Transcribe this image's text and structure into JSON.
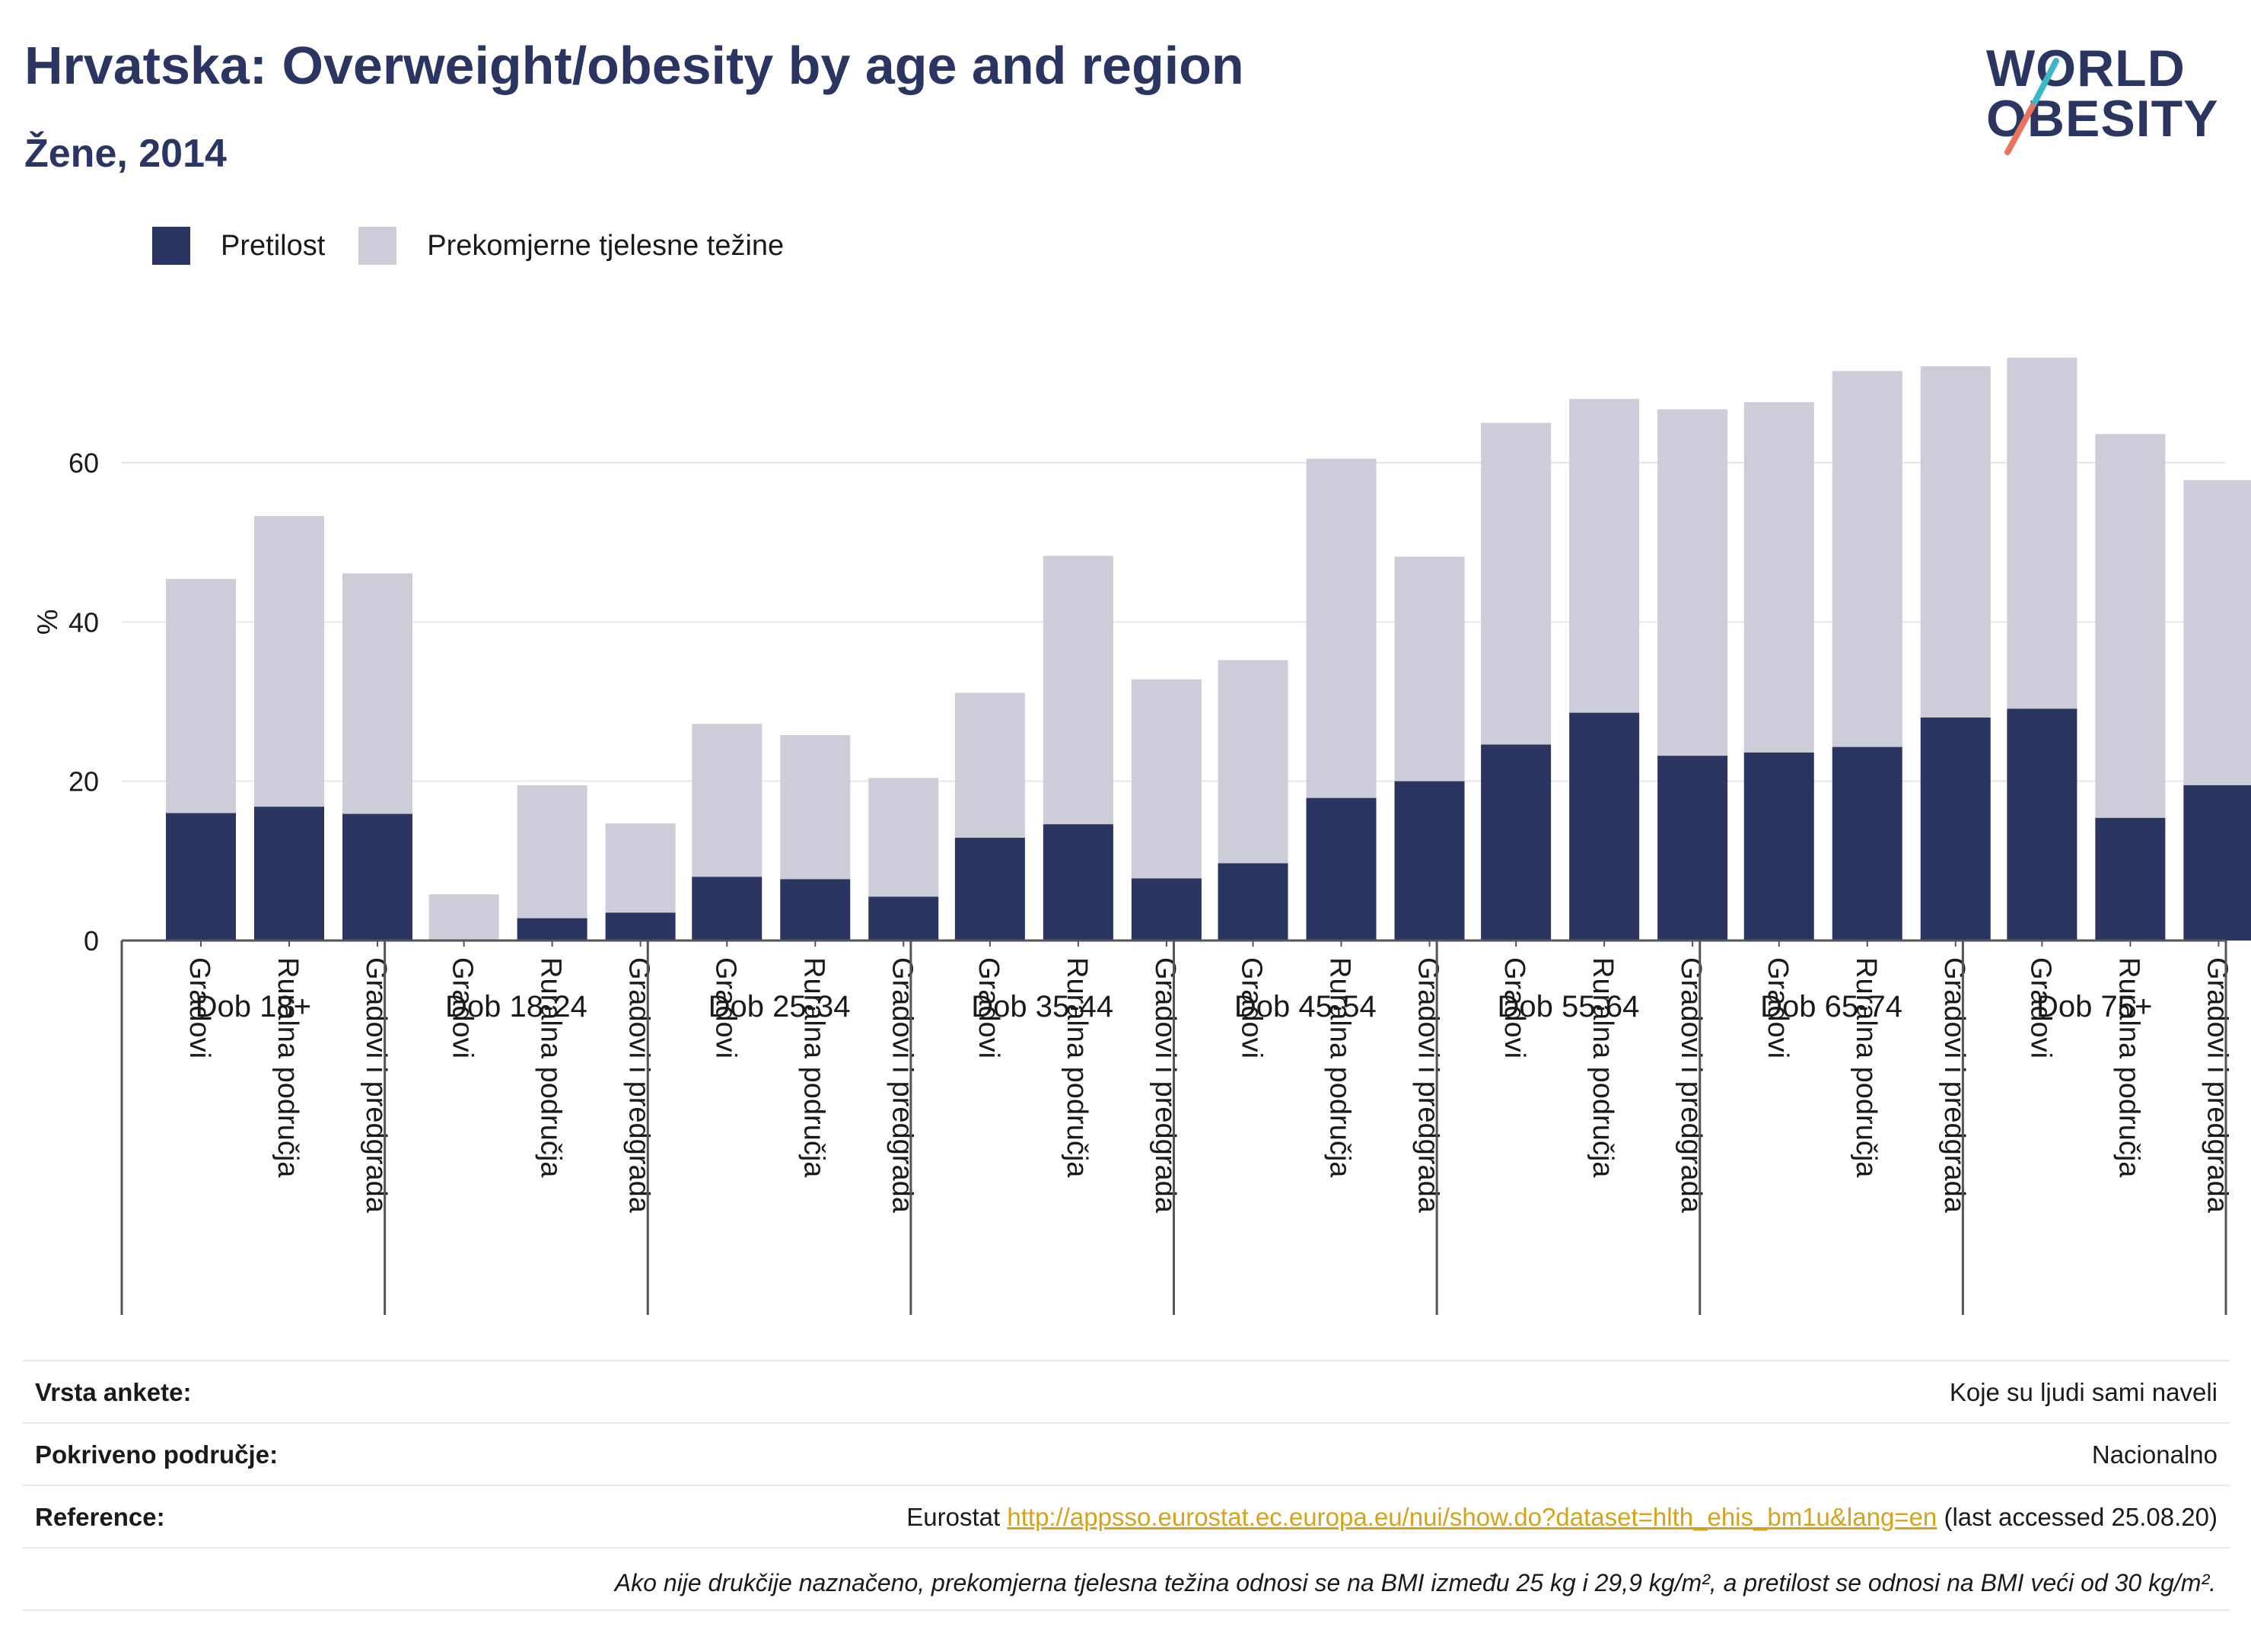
{
  "title": "Hrvatska: Overweight/obesity by age and region",
  "subtitle": "Žene, 2014",
  "logo": {
    "line1": "WORLD",
    "line2": "OBESITY",
    "accent_colors": [
      "#3bb7c9",
      "#e8735e"
    ]
  },
  "legend": [
    {
      "label": "Pretilost",
      "color": "#2a3561"
    },
    {
      "label": "Prekomjerne tjelesne težine",
      "color": "#cccdd8"
    }
  ],
  "chart_data": {
    "type": "bar",
    "stacked": true,
    "ylabel": "%",
    "ylim": [
      0,
      80
    ],
    "yticks": [
      0,
      20,
      40,
      60
    ],
    "grid": true,
    "legend_position": "top-left",
    "groups": [
      "Dob 18+",
      "Dob 18-24",
      "Dob 25-34",
      "Dob 35-44",
      "Dob 45-54",
      "Dob 55-64",
      "Dob 65-74",
      "Dob 75+"
    ],
    "subcategories": [
      "Gradovi",
      "Ruralna područja",
      "Gradovi i predgrađa"
    ],
    "series": [
      {
        "name": "Pretilost",
        "color": "#2a3561",
        "values": [
          16.0,
          16.8,
          15.9,
          0.0,
          2.8,
          3.5,
          8.0,
          7.7,
          5.5,
          12.9,
          14.6,
          7.8,
          9.7,
          17.9,
          20.0,
          24.6,
          28.6,
          23.2,
          23.6,
          24.3,
          28.0,
          29.1,
          15.4,
          19.5
        ]
      },
      {
        "name": "Prekomjerne tjelesne težine",
        "color": "#cccdd8",
        "values": [
          29.4,
          36.5,
          30.2,
          5.8,
          16.7,
          11.2,
          19.2,
          18.1,
          14.9,
          18.2,
          33.7,
          25.0,
          25.5,
          42.6,
          28.2,
          40.4,
          39.4,
          43.5,
          44.0,
          47.2,
          44.1,
          44.1,
          48.2,
          38.3
        ]
      }
    ],
    "totals": [
      45.4,
      53.3,
      46.1,
      5.8,
      19.5,
      14.7,
      27.2,
      25.8,
      20.4,
      31.1,
      48.3,
      32.8,
      35.2,
      60.5,
      48.2,
      65.0,
      68.0,
      66.7,
      67.6,
      71.5,
      72.1,
      73.2,
      63.6,
      57.8
    ]
  },
  "info": {
    "survey_type": {
      "label": "Vrsta ankete:",
      "value": "Koje su ljudi sami naveli"
    },
    "coverage": {
      "label": "Pokriveno područje:",
      "value": "Nacionalno"
    },
    "reference": {
      "label": "Reference:",
      "prefix": "Eurostat",
      "link": "http://appsso.eurostat.ec.europa.eu/nui/show.do?dataset=hlth_ehis_bm1u&lang=en",
      "suffix": "(last accessed 25.08.20)"
    },
    "note": "Ako nije drukčije naznačeno, prekomjerna tjelesna težina odnosi se na BMI između 25 kg i 29,9 kg/m², a pretilost se odnosi na BMI veći od 30 kg/m²."
  }
}
